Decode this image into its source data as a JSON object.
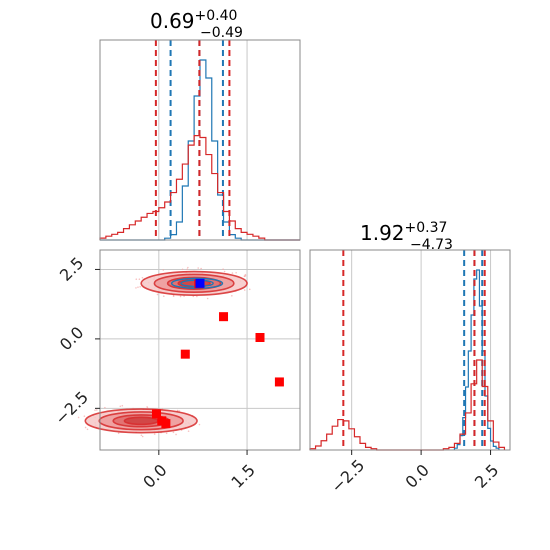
{
  "chart_data": [
    {
      "type": "histogram",
      "panel": "marginal-param-1",
      "title": {
        "value": "0.69",
        "upper": "+0.40",
        "lower": "−0.49"
      },
      "xlim": [
        -1.0,
        2.4
      ],
      "grid": true,
      "series": [
        {
          "color": "#1f77b4",
          "bin_edges": [
            -1.0,
            -0.9,
            -0.8,
            -0.7,
            -0.6,
            -0.5,
            -0.4,
            -0.3,
            -0.2,
            -0.1,
            0.0,
            0.1,
            0.2,
            0.3,
            0.4,
            0.5,
            0.6,
            0.7,
            0.8,
            0.9,
            1.0,
            1.1,
            1.2,
            1.3,
            1.4,
            1.5,
            1.6,
            1.7,
            1.8,
            1.9,
            2.0,
            2.1,
            2.2,
            2.3,
            2.4
          ],
          "counts": [
            0,
            0,
            0,
            0,
            0,
            0,
            0,
            0,
            0,
            0,
            0,
            0.01,
            0.03,
            0.1,
            0.3,
            0.55,
            0.8,
            1.0,
            0.9,
            0.55,
            0.25,
            0.1,
            0.03,
            0.01,
            0,
            0,
            0,
            0,
            0,
            0,
            0,
            0,
            0,
            0
          ],
          "quantile_lines": [
            0.2,
            0.69,
            1.09
          ]
        },
        {
          "color": "#d62728",
          "bin_edges": [
            -1.0,
            -0.9,
            -0.8,
            -0.7,
            -0.6,
            -0.5,
            -0.4,
            -0.3,
            -0.2,
            -0.1,
            0.0,
            0.1,
            0.2,
            0.3,
            0.4,
            0.5,
            0.6,
            0.7,
            0.8,
            0.9,
            1.0,
            1.1,
            1.2,
            1.3,
            1.4,
            1.5,
            1.6,
            1.7,
            1.8,
            1.9,
            2.0,
            2.1,
            2.2,
            2.3,
            2.4
          ],
          "counts": [
            0.01,
            0.02,
            0.03,
            0.04,
            0.06,
            0.08,
            0.1,
            0.12,
            0.14,
            0.15,
            0.17,
            0.2,
            0.25,
            0.32,
            0.4,
            0.5,
            0.55,
            0.54,
            0.45,
            0.35,
            0.25,
            0.15,
            0.1,
            0.06,
            0.04,
            0.03,
            0.02,
            0.01,
            0,
            0,
            0,
            0,
            0,
            0
          ],
          "quantile_lines": [
            -0.05,
            0.69,
            1.2
          ]
        }
      ]
    },
    {
      "type": "scatter_contour",
      "panel": "joint-param-1-vs-param-2",
      "xlim": [
        -1.0,
        2.4
      ],
      "ylim": [
        -4.0,
        3.2
      ],
      "x_ticks": [
        0.0,
        1.5
      ],
      "x_tick_labels": [
        "0.0",
        "1.5"
      ],
      "y_ticks": [
        2.5,
        0.0,
        -2.5
      ],
      "y_tick_labels": [
        "2.5",
        "0.0",
        "−2.5"
      ],
      "grid": true,
      "red_markers": [
        {
          "x": 0.68,
          "y": 1.98
        },
        {
          "x": 1.1,
          "y": 0.8
        },
        {
          "x": 1.72,
          "y": 0.05
        },
        {
          "x": 0.45,
          "y": -0.55
        },
        {
          "x": 2.05,
          "y": -1.55
        },
        {
          "x": -0.04,
          "y": -2.7
        },
        {
          "x": 0.05,
          "y": -2.95
        },
        {
          "x": 0.12,
          "y": -3.05
        }
      ],
      "blue_markers": [
        {
          "x": 0.7,
          "y": 2.0
        }
      ],
      "blobs": [
        {
          "cx": 0.6,
          "cy": 2.0,
          "rx": 0.9,
          "ry": 0.85,
          "levels": [
            1.0,
            0.75,
            0.5,
            0.3
          ]
        },
        {
          "cx": -0.3,
          "cy": -2.95,
          "rx": 0.95,
          "ry": 0.85,
          "levels": [
            1.0,
            0.75,
            0.5,
            0.3
          ]
        }
      ]
    },
    {
      "type": "histogram",
      "panel": "marginal-param-2",
      "title": {
        "value": "1.92",
        "upper": "+0.37",
        "lower": "−4.73"
      },
      "xlim": [
        -4.0,
        3.2
      ],
      "x_ticks": [
        -2.5,
        0.0,
        2.5
      ],
      "x_tick_labels": [
        "−2.5",
        "0.0",
        "2.5"
      ],
      "grid": true,
      "series": [
        {
          "color": "#1f77b4",
          "bin_edges": [
            1.2,
            1.3,
            1.4,
            1.5,
            1.6,
            1.7,
            1.8,
            1.9,
            2.0,
            2.1,
            2.2,
            2.3,
            2.4,
            2.5,
            2.6,
            2.7,
            2.8
          ],
          "counts": [
            0.01,
            0.03,
            0.08,
            0.18,
            0.35,
            0.55,
            0.75,
            0.95,
            1.0,
            0.8,
            0.55,
            0.3,
            0.12,
            0.05,
            0.02,
            0.01
          ],
          "quantile_lines": [
            1.55,
            1.92,
            2.2
          ]
        },
        {
          "color": "#d62728",
          "bin_edges": [
            -4.0,
            -3.8,
            -3.6,
            -3.4,
            -3.2,
            -3.0,
            -2.8,
            -2.6,
            -2.4,
            -2.2,
            -2.0,
            -1.8,
            -1.6,
            -1.4,
            -1.2,
            -1.0,
            -0.8,
            -0.6,
            -0.4,
            -0.2,
            0.0,
            0.2,
            0.4,
            0.6,
            0.8,
            1.0,
            1.2,
            1.4,
            1.6,
            1.8,
            2.0,
            2.2,
            2.4,
            2.6,
            2.8,
            3.0
          ],
          "counts": [
            0.01,
            0.03,
            0.07,
            0.12,
            0.18,
            0.23,
            0.22,
            0.16,
            0.1,
            0.05,
            0.02,
            0.01,
            0,
            0,
            0,
            0,
            0,
            0,
            0,
            0,
            0,
            0,
            0,
            0,
            0.01,
            0.02,
            0.05,
            0.12,
            0.28,
            0.5,
            0.68,
            0.48,
            0.22,
            0.06,
            0.02
          ],
          "quantile_lines": [
            -2.8,
            1.92,
            2.29
          ]
        }
      ]
    }
  ]
}
